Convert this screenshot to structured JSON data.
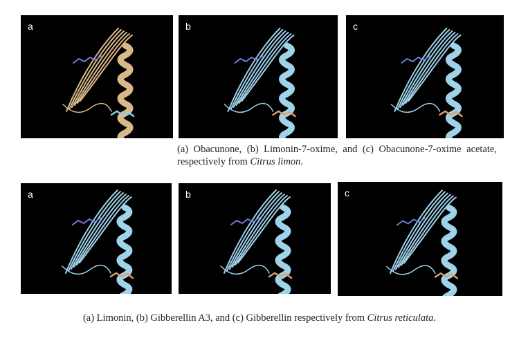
{
  "figures": [
    {
      "panels": [
        {
          "label": "a"
        },
        {
          "label": "b"
        },
        {
          "label": "c"
        }
      ],
      "caption": {
        "text": "(a) Obacunone, (b) Limonin-7-oxime, and (c) Obacunone-7-oxime acetate, respectively from ",
        "species": "Citrus limon",
        "end": "."
      }
    },
    {
      "panels": [
        {
          "label": "a"
        },
        {
          "label": "b"
        },
        {
          "label": "c"
        }
      ],
      "caption": {
        "text": "(a) Limonin, (b) Gibberellin A3, and (c) Gibberellin respectively from ",
        "species": "Citrus reticulata",
        "end": "."
      }
    }
  ]
}
